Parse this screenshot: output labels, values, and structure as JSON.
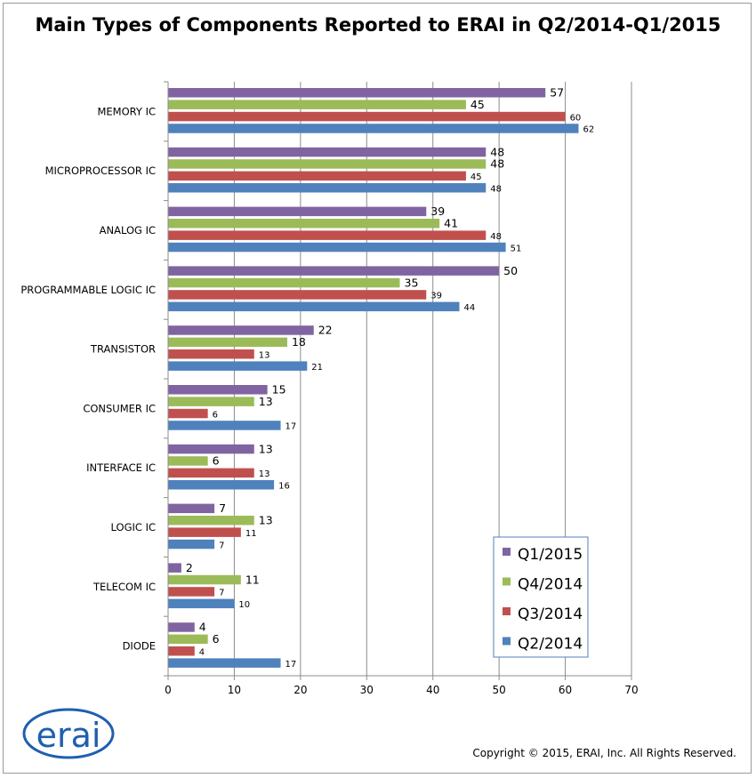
{
  "title": "Main Types of Components Reported to ERAI in Q2/2014-Q1/2015",
  "copyright": "Copyright © 2015, ERAI, Inc.  All Rights Reserved.",
  "logo_text": "erai",
  "colors": {
    "Q1/2015": "#8064a2",
    "Q4/2014": "#9bbb59",
    "Q3/2014": "#c0504d",
    "Q2/2014": "#4f81bd"
  },
  "chart_data": {
    "type": "bar",
    "orientation": "horizontal",
    "categories": [
      "MEMORY IC",
      "MICROPROCESSOR IC",
      "ANALOG IC",
      "PROGRAMMABLE LOGIC IC",
      "TRANSISTOR",
      "CONSUMER IC",
      "INTERFACE  IC",
      "LOGIC IC",
      "TELECOM IC",
      "DIODE"
    ],
    "series": [
      {
        "name": "Q1/2015",
        "values": [
          57,
          48,
          39,
          50,
          22,
          15,
          13,
          7,
          2,
          4
        ]
      },
      {
        "name": "Q4/2014",
        "values": [
          45,
          48,
          41,
          35,
          18,
          13,
          6,
          13,
          11,
          6
        ]
      },
      {
        "name": "Q3/2014",
        "values": [
          60,
          45,
          48,
          39,
          13,
          6,
          13,
          11,
          7,
          4
        ]
      },
      {
        "name": "Q2/2014",
        "values": [
          62,
          48,
          51,
          44,
          21,
          17,
          16,
          7,
          10,
          17
        ]
      }
    ],
    "xlim": [
      0,
      70
    ],
    "xticks": [
      0,
      10,
      20,
      30,
      40,
      50,
      60,
      70
    ],
    "grid": "vertical",
    "legend": {
      "position": "bottom-right",
      "order": [
        "Q1/2015",
        "Q4/2014",
        "Q3/2014",
        "Q2/2014"
      ]
    },
    "xlabel": "",
    "ylabel": ""
  }
}
